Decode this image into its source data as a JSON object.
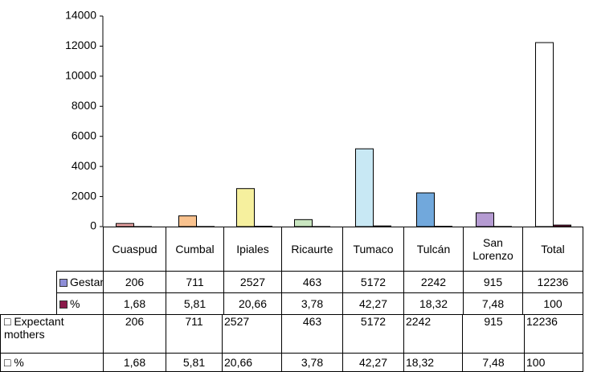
{
  "chart_data": {
    "type": "bar",
    "categories": [
      "Cuaspud",
      "Cumbal",
      "Ipiales",
      "Ricaurte",
      "Tumaco",
      "Tulcán",
      "San Lorenzo",
      "Total"
    ],
    "series": [
      {
        "name": "Gestantes",
        "color": "#8f8fd8",
        "colors": [
          "#e9a3a3",
          "#f9c28e",
          "#f6f09e",
          "#c9e6c0",
          "#c8e8f4",
          "#71a8dc",
          "#b59bd2",
          "#ffffff"
        ],
        "values": [
          206,
          711,
          2527,
          463,
          5172,
          2242,
          915,
          12236
        ]
      },
      {
        "name": "%",
        "color": "#8b1a4a",
        "values": [
          1.68,
          5.81,
          20.66,
          3.78,
          42.27,
          18.32,
          7.48,
          100
        ],
        "value_labels": [
          "1,68",
          "5,81",
          "20,66",
          "3,78",
          "42,27",
          "18,32",
          "7,48",
          "100"
        ]
      }
    ],
    "ylim": [
      0,
      14000
    ],
    "yticks": [
      0,
      2000,
      4000,
      6000,
      8000,
      10000,
      12000,
      14000
    ]
  },
  "table": {
    "rows": [
      [
        "□ Expectant mothers",
        "206",
        "711",
        "2527",
        "463",
        "5172",
        "2242",
        "915",
        "12236"
      ],
      [
        "□ %",
        "1,68",
        "5,81",
        "20,66",
        "3,78",
        "42,27",
        "18,32",
        "7,48",
        "100"
      ]
    ]
  }
}
